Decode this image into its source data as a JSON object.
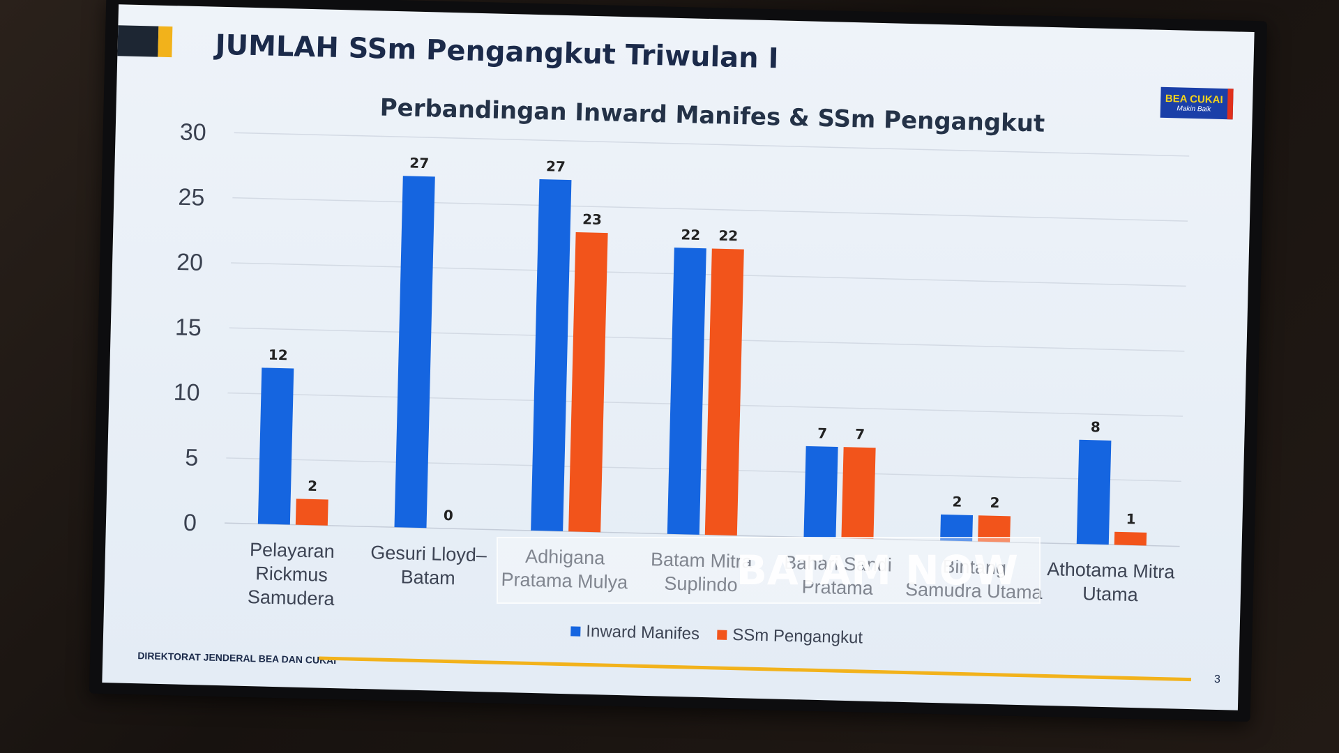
{
  "slide": {
    "title": "JUMLAH SSm Pengangkut Triwulan I",
    "footer_org": "DIREKTORAT JENDERAL  BEA DAN CUKAI",
    "page_number": "3",
    "logo_text": "BEA CUKAI",
    "logo_tagline": "Makin Baik"
  },
  "watermark": {
    "text": "BATAM NOW"
  },
  "colors": {
    "inward": "#1565e0",
    "ssm": "#f2541b",
    "accent_gold": "#f2b21b"
  },
  "chart_data": {
    "type": "bar",
    "title": "Perbandingan Inward Manifes & SSm Pengangkut",
    "categories": [
      [
        "Pelayaran",
        "Rickmus",
        "Samudera"
      ],
      [
        "Gesuri Lloyd–",
        "Batam"
      ],
      [
        "Adhigana",
        "Pratama Mulya"
      ],
      [
        "Batam Mitra",
        "Suplindo"
      ],
      [
        "Bahari Sandi",
        "Pratama"
      ],
      [
        "Bintang",
        "Samudra Utama"
      ],
      [
        "Athotama Mitra",
        "Utama"
      ]
    ],
    "series": [
      {
        "name": "Inward Manifes",
        "values": [
          12,
          27,
          27,
          22,
          7,
          2,
          8
        ],
        "display_labels": [
          "12",
          "27",
          "27",
          "22",
          "7",
          "2",
          "8"
        ]
      },
      {
        "name": "SSm Pengangkut",
        "values": [
          2,
          0,
          23,
          22,
          7,
          2,
          1
        ],
        "display_labels": [
          "2",
          "0",
          "23",
          "22",
          "7",
          "2",
          "1"
        ]
      }
    ],
    "ylim": [
      0,
      30
    ],
    "yticks": [
      0,
      5,
      10,
      15,
      20,
      25,
      30
    ],
    "xlabel": "",
    "ylabel": "",
    "grid": true,
    "legend": "bottom"
  }
}
